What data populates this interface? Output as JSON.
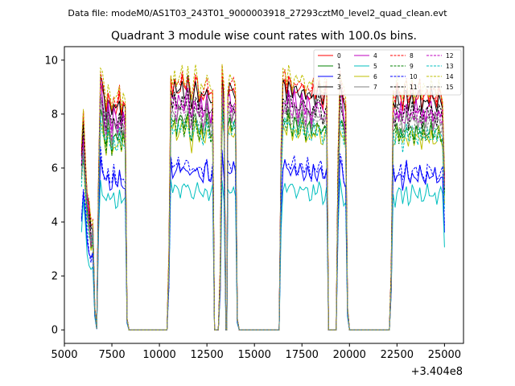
{
  "chart_data": {
    "type": "line",
    "suptitle": "Data file: modeM0/AS1T03_243T01_9000003918_27293cztM0_level2_quad_clean.evt",
    "title": "Quadrant 3 module wise count rates with 100.0s bins.",
    "xlabel": "",
    "ylabel": "",
    "x_offset_label": "+3.404e8",
    "xlim": [
      5000,
      26000
    ],
    "ylim": [
      -0.5,
      10.5
    ],
    "x_ticks": [
      5000,
      7500,
      10000,
      12500,
      15000,
      17500,
      20000,
      22500,
      25000
    ],
    "x_tick_labels": [
      "5000",
      "7500",
      "10000",
      "12500",
      "15000",
      "17500",
      "20000",
      "22500",
      "25000"
    ],
    "y_ticks": [
      0,
      2,
      4,
      6,
      8,
      10
    ],
    "y_tick_labels": [
      "0",
      "2",
      "4",
      "6",
      "8",
      "10"
    ],
    "grid": false,
    "legend_position": "top-right",
    "segment_profile": [
      [
        5900,
        6.3
      ],
      [
        6000,
        7.6
      ],
      [
        6100,
        6.2
      ],
      [
        6200,
        4.9
      ],
      [
        6300,
        4.3
      ],
      [
        6400,
        3.6
      ],
      [
        6500,
        3.9
      ],
      [
        6600,
        0.8
      ],
      [
        6700,
        0.05
      ],
      [
        6800,
        5.5
      ],
      [
        6900,
        9.3
      ],
      [
        7000,
        8.8
      ],
      [
        7100,
        8.2
      ],
      [
        7200,
        7.8
      ],
      [
        7300,
        8.6
      ],
      [
        7400,
        8.1
      ],
      [
        7500,
        7.7
      ],
      [
        7600,
        8.3
      ],
      [
        7700,
        8.0
      ],
      [
        7800,
        7.9
      ],
      [
        7900,
        8.4
      ],
      [
        8000,
        7.8
      ],
      [
        8100,
        8.2
      ],
      [
        8200,
        7.9
      ],
      [
        8300,
        0.4
      ],
      [
        8400,
        0.0
      ],
      [
        10400,
        0.0
      ],
      [
        10500,
        2.5
      ],
      [
        10600,
        9.0
      ],
      [
        10700,
        8.6
      ],
      [
        10800,
        8.9
      ],
      [
        10900,
        8.5
      ],
      [
        11000,
        8.8
      ],
      [
        11100,
        8.7
      ],
      [
        11200,
        8.9
      ],
      [
        11300,
        8.6
      ],
      [
        11400,
        8.8
      ],
      [
        11500,
        9.1
      ],
      [
        11600,
        8.4
      ],
      [
        11700,
        8.1
      ],
      [
        11800,
        8.6
      ],
      [
        11900,
        8.9
      ],
      [
        12000,
        8.7
      ],
      [
        12100,
        8.3
      ],
      [
        12200,
        8.6
      ],
      [
        12300,
        8.2
      ],
      [
        12400,
        8.5
      ],
      [
        12500,
        8.9
      ],
      [
        12600,
        8.4
      ],
      [
        12700,
        8.2
      ],
      [
        12800,
        8.5
      ],
      [
        12900,
        0.0
      ],
      [
        13100,
        0.0
      ],
      [
        13200,
        2.0
      ],
      [
        13300,
        9.3
      ],
      [
        13400,
        8.4
      ],
      [
        13500,
        0.0
      ],
      [
        13550,
        0.0
      ],
      [
        13600,
        8.6
      ],
      [
        13700,
        8.8
      ],
      [
        13800,
        8.5
      ],
      [
        13900,
        8.7
      ],
      [
        14000,
        8.6
      ],
      [
        14100,
        0.4
      ],
      [
        14200,
        0.0
      ],
      [
        16300,
        0.0
      ],
      [
        16400,
        6.5
      ],
      [
        16500,
        8.8
      ],
      [
        16600,
        8.9
      ],
      [
        16700,
        8.6
      ],
      [
        16800,
        9.1
      ],
      [
        16900,
        8.7
      ],
      [
        17000,
        8.5
      ],
      [
        17100,
        8.9
      ],
      [
        17200,
        8.6
      ],
      [
        17300,
        8.4
      ],
      [
        17400,
        8.7
      ],
      [
        17500,
        8.9
      ],
      [
        17600,
        8.6
      ],
      [
        17700,
        8.3
      ],
      [
        17800,
        8.7
      ],
      [
        17900,
        8.5
      ],
      [
        18000,
        8.2
      ],
      [
        18100,
        8.7
      ],
      [
        18200,
        8.4
      ],
      [
        18300,
        8.6
      ],
      [
        18400,
        8.8
      ],
      [
        18500,
        8.5
      ],
      [
        18600,
        8.2
      ],
      [
        18700,
        8.4
      ],
      [
        18800,
        8.6
      ],
      [
        18900,
        0.0
      ],
      [
        19300,
        0.0
      ],
      [
        19400,
        6.0
      ],
      [
        19500,
        9.0
      ],
      [
        19600,
        8.7
      ],
      [
        19700,
        8.2
      ],
      [
        19800,
        7.8
      ],
      [
        19900,
        0.8
      ],
      [
        20000,
        0.0
      ],
      [
        22100,
        0.0
      ],
      [
        22200,
        2.0
      ],
      [
        22300,
        8.4
      ],
      [
        22400,
        8.1
      ],
      [
        22500,
        8.6
      ],
      [
        22600,
        8.3
      ],
      [
        22700,
        8.5
      ],
      [
        22800,
        8.0
      ],
      [
        22900,
        8.4
      ],
      [
        23000,
        8.7
      ],
      [
        23100,
        8.1
      ],
      [
        23200,
        8.3
      ],
      [
        23300,
        8.6
      ],
      [
        23400,
        8.2
      ],
      [
        23500,
        8.5
      ],
      [
        23600,
        8.3
      ],
      [
        23700,
        8.6
      ],
      [
        23800,
        8.1
      ],
      [
        23900,
        8.4
      ],
      [
        24000,
        8.2
      ],
      [
        24100,
        8.5
      ],
      [
        24200,
        8.3
      ],
      [
        24300,
        8.6
      ],
      [
        24400,
        8.2
      ],
      [
        24500,
        8.4
      ],
      [
        24600,
        8.1
      ],
      [
        24700,
        8.5
      ],
      [
        24800,
        8.3
      ],
      [
        24900,
        8.2
      ],
      [
        25000,
        5.5
      ]
    ],
    "series": [
      {
        "name": "0",
        "color": "#ff0000",
        "dash": "solid",
        "scale": 1.03
      },
      {
        "name": "1",
        "color": "#008000",
        "dash": "solid",
        "scale": 0.88
      },
      {
        "name": "2",
        "color": "#0000ff",
        "dash": "solid",
        "scale": 0.68
      },
      {
        "name": "3",
        "color": "#000000",
        "dash": "solid",
        "scale": 1.02
      },
      {
        "name": "4",
        "color": "#bf00bf",
        "dash": "solid",
        "scale": 0.97
      },
      {
        "name": "5",
        "color": "#00bfbf",
        "dash": "solid",
        "scale": 0.6
      },
      {
        "name": "6",
        "color": "#bfbf00",
        "dash": "solid",
        "scale": 0.85
      },
      {
        "name": "7",
        "color": "#808080",
        "dash": "solid",
        "scale": 0.93
      },
      {
        "name": "8",
        "color": "#ff0000",
        "dash": "dashed",
        "scale": 1.05
      },
      {
        "name": "9",
        "color": "#008000",
        "dash": "dashed",
        "scale": 0.87
      },
      {
        "name": "10",
        "color": "#0000ff",
        "dash": "dashed",
        "scale": 0.7
      },
      {
        "name": "11",
        "color": "#000000",
        "dash": "dashed",
        "scale": 0.96
      },
      {
        "name": "12",
        "color": "#bf00bf",
        "dash": "dashed",
        "scale": 0.94
      },
      {
        "name": "13",
        "color": "#00bfbf",
        "dash": "dashed",
        "scale": 0.86
      },
      {
        "name": "14",
        "color": "#bfbf00",
        "dash": "dashed",
        "scale": 1.07
      },
      {
        "name": "15",
        "color": "#808080",
        "dash": "dashed",
        "scale": 0.91
      }
    ]
  }
}
